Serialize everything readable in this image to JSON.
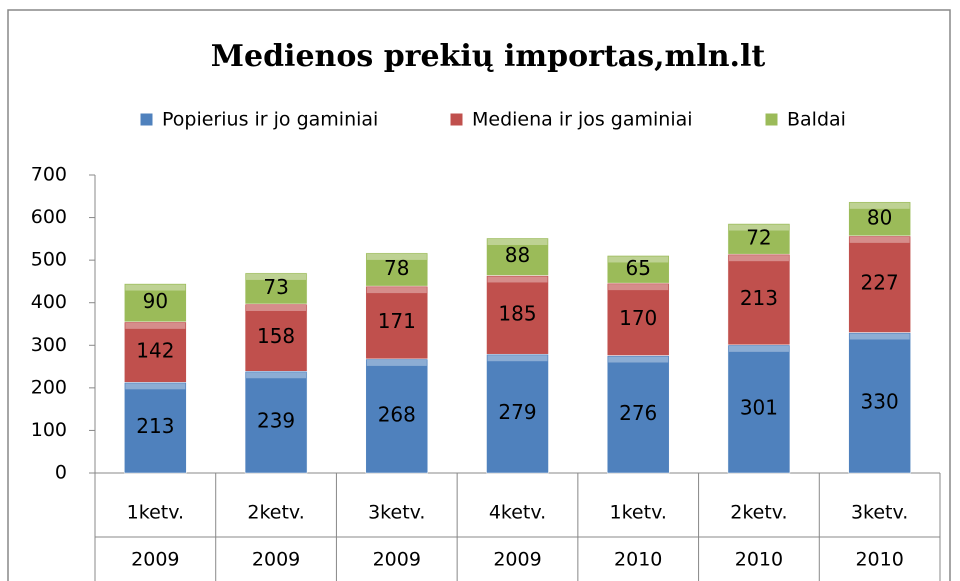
{
  "chart_data": {
    "type": "stacked_bar",
    "title": "Medienos prekių importas,mln.lt",
    "categories": [
      "1ketv.",
      "2ketv.",
      "3ketv.",
      "4ketv.",
      "1ketv.",
      "2ketv.",
      "3ketv."
    ],
    "years": [
      "2009",
      "2009",
      "2009",
      "2009",
      "2010",
      "2010",
      "2010"
    ],
    "series": [
      {
        "name": "Popierius ir jo gaminiai",
        "color": "#4f81bd",
        "values": [
          213,
          239,
          268,
          279,
          276,
          301,
          330
        ]
      },
      {
        "name": "Mediena ir jos gaminiai",
        "color": "#c0504d",
        "values": [
          142,
          158,
          171,
          185,
          170,
          213,
          227
        ]
      },
      {
        "name": "Baldai",
        "color": "#9bbb59",
        "values": [
          90,
          73,
          78,
          88,
          65,
          72,
          80
        ]
      }
    ],
    "ylim": [
      0,
      700
    ],
    "yticks": [
      0,
      100,
      200,
      300,
      400,
      500,
      600,
      700
    ],
    "legend": "top"
  }
}
